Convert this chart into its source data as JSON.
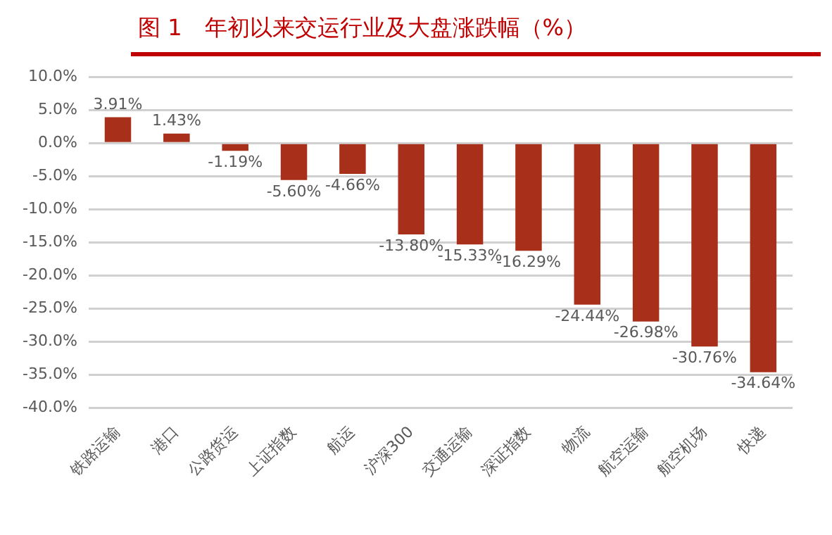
{
  "chart_data": {
    "type": "bar",
    "title": "图 1　年初以来交运行业及大盘涨跌幅（%）",
    "categories": [
      "铁路运输",
      "港口",
      "公路货运",
      "上证指数",
      "航运",
      "沪深300",
      "交通运输",
      "深证指数",
      "物流",
      "航空运输",
      "航空机场",
      "快递"
    ],
    "values": [
      3.91,
      1.43,
      -1.19,
      -5.6,
      -4.66,
      -13.8,
      -15.33,
      -16.29,
      -24.44,
      -26.98,
      -30.76,
      -34.64
    ],
    "value_labels": [
      "3.91%",
      "1.43%",
      "-1.19%",
      "-5.60%",
      "-4.66%",
      "-13.80%",
      "-15.33%",
      "-16.29%",
      "-24.44%",
      "-26.98%",
      "-30.76%",
      "-34.64%"
    ],
    "color": "#a8301a",
    "ylim": [
      -40,
      10
    ],
    "yticks": [
      {
        "value": 10,
        "label": "10.0%"
      },
      {
        "value": 5,
        "label": "5.0%"
      },
      {
        "value": 0,
        "label": "0.0%"
      },
      {
        "value": -5,
        "label": "-5.0%"
      },
      {
        "value": -10,
        "label": "-10.0%"
      },
      {
        "value": -15,
        "label": "-15.0%"
      },
      {
        "value": -20,
        "label": "-20.0%"
      },
      {
        "value": -25,
        "label": "-25.0%"
      },
      {
        "value": -30,
        "label": "-30.0%"
      },
      {
        "value": -35,
        "label": "-35.0%"
      },
      {
        "value": -40,
        "label": "-40.0%"
      }
    ],
    "grid": "y",
    "legend": false
  }
}
